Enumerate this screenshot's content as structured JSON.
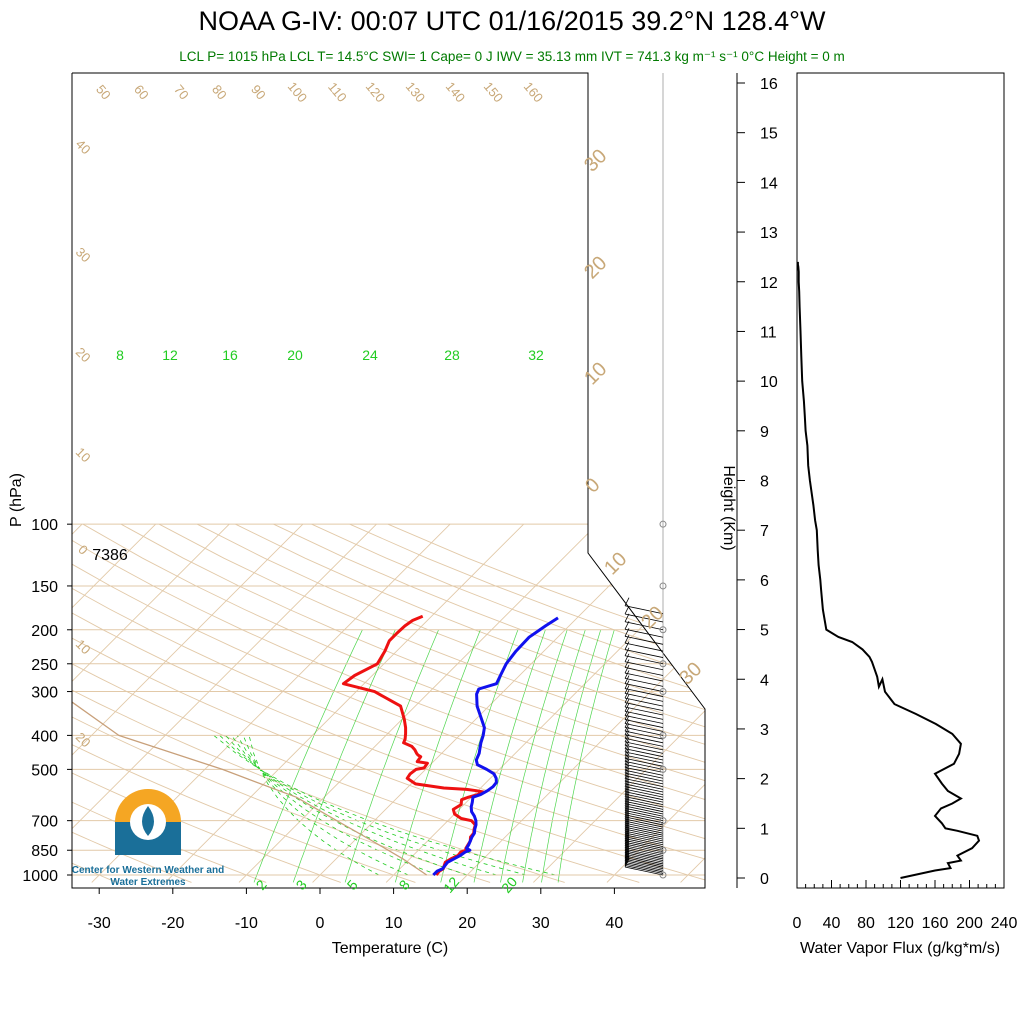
{
  "title": "NOAA G-IV: 00:07 UTC 01/16/2015  39.2°N 128.4°W",
  "subtitle": "LCL P= 1015 hPa  LCL T= 14.5°C  SWI= 1  Cape= 0 J  IWV = 35.13 mm  IVT = 741.3 kg m⁻¹ s⁻¹  0°C Height = 0 m",
  "logo": {
    "name": "cw3e-logo-icon",
    "text": "Center for Western Weather and Water Extremes"
  },
  "chart_data": [
    {
      "type": "line",
      "subtype": "skew-T log-P sounding",
      "xlabel": "Temperature (C)",
      "ylabel": "P (hPa)",
      "xlim": [
        -33,
        41
      ],
      "ylim": [
        1050,
        100
      ],
      "y_scale": "log",
      "x_ticks": [
        "-30",
        "-20",
        "-10",
        "0",
        "10",
        "20",
        "30",
        "40"
      ],
      "y_ticks": [
        "100",
        "150",
        "200",
        "250",
        "300",
        "400",
        "500",
        "700",
        "850",
        "1000"
      ],
      "annotation_height": "7386",
      "mixing_ratio_labels": [
        "8",
        "12",
        "16",
        "20",
        "24",
        "28",
        "32"
      ],
      "lower_mixing_labels": [
        "2",
        "3",
        "5",
        "8",
        "12",
        "20"
      ],
      "isotherm_labels": [
        "30",
        "20",
        "10",
        "0",
        "10",
        "20",
        "30"
      ],
      "adiabat_labels": [
        "50",
        "60",
        "70",
        "80",
        "90",
        "100",
        "110",
        "120",
        "130",
        "140",
        "150",
        "160"
      ],
      "left_labels": [
        "40",
        "30",
        "20",
        "10",
        "0",
        "10",
        "20"
      ],
      "colors": {
        "temperature": "#ee1111",
        "dewpoint": "#1111ee",
        "parcel": "#c8a07a",
        "grid": "#e2c9a8",
        "mixing": "#22cc22"
      },
      "series": [
        {
          "role": "temperature",
          "x": [
            15.8,
            15.7,
            15.9,
            15.6,
            15.3,
            15.6,
            16.1,
            16.0,
            16.5,
            16.2,
            16.0,
            15.8,
            15.3,
            15.2,
            14.7,
            14.3,
            13.2,
            11.5,
            10.0,
            9.2,
            9.6,
            9.0,
            9.6,
            10.5,
            10.9,
            9.8,
            8.3,
            5.0,
            0.6,
            -1.3,
            -1.5,
            -1.3,
            -0.4,
            -0.6,
            -2.2,
            -2.4,
            -3.0,
            -3.4,
            -4.1,
            -5.0,
            -6.6,
            -6.9,
            -7.6,
            -8.4,
            -9.7,
            -12.0,
            -17.5,
            -22.8,
            -22.4,
            -20.9,
            -21.6,
            -22.4,
            -22.4,
            -22.3,
            -22.0,
            -21.2
          ],
          "y": [
            1000,
            975,
            960,
            940,
            920,
            900,
            880,
            860,
            850,
            840,
            820,
            800,
            780,
            760,
            740,
            720,
            700,
            690,
            670,
            650,
            630,
            610,
            600,
            590,
            580,
            575,
            570,
            565,
            550,
            530,
            515,
            500,
            495,
            480,
            475,
            460,
            455,
            450,
            440,
            430,
            420,
            410,
            395,
            380,
            360,
            330,
            300,
            285,
            270,
            250,
            230,
            215,
            205,
            195,
            188,
            183
          ]
        },
        {
          "role": "dewpoint",
          "x": [
            15.4,
            15.4,
            15.8,
            15.7,
            15.6,
            16.0,
            16.4,
            16.6,
            17.0,
            16.3,
            16.1,
            15.8,
            15.5,
            15.3,
            14.8,
            14.4,
            13.8,
            13.0,
            12.0,
            11.3,
            10.8,
            10.2,
            10.9,
            11.3,
            11.5,
            11.4,
            10.8,
            9.9,
            8.3,
            6.4,
            5.6,
            5.1,
            4.7,
            3.9,
            3.2,
            2.3,
            0.8,
            -1.6,
            -3.3,
            -3.7,
            -2.0,
            -2.6,
            -3.4,
            -3.8,
            -3.9,
            -3.2,
            -2.6
          ],
          "y": [
            1000,
            975,
            960,
            940,
            920,
            900,
            880,
            860,
            850,
            840,
            820,
            800,
            780,
            760,
            740,
            720,
            700,
            680,
            660,
            640,
            620,
            600,
            590,
            575,
            560,
            545,
            530,
            515,
            500,
            485,
            470,
            450,
            440,
            420,
            400,
            380,
            360,
            330,
            305,
            295,
            285,
            270,
            250,
            230,
            210,
            195,
            185
          ]
        },
        {
          "role": "parcel",
          "x": [
            14.5,
            9.1,
            2.5,
            -5.1,
            -13.8,
            -27.6,
            -46.3,
            -60.6,
            -73.9,
            -91.6
          ],
          "y": [
            1000,
            900,
            800,
            700,
            600,
            500,
            400,
            300,
            250,
            200
          ]
        }
      ]
    },
    {
      "type": "line",
      "xlabel": "Water Vapor Flux (g/kg*m/s)",
      "ylabel": "Height (Km)",
      "xlim": [
        0,
        240
      ],
      "ylim": [
        -0.3,
        16.5
      ],
      "x_ticks": [
        "0",
        "40",
        "80",
        "120",
        "160",
        "200",
        "240"
      ],
      "y_ticks": [
        "0",
        "1",
        "2",
        "3",
        "4",
        "5",
        "6",
        "7",
        "8",
        "9",
        "10",
        "11",
        "12",
        "13",
        "14",
        "15",
        "16"
      ],
      "series": [
        {
          "role": "flux",
          "x": [
            120,
            160,
            178,
            175,
            190,
            186,
            203,
            211,
            209,
            186,
            172,
            168,
            160,
            167,
            180,
            190,
            175,
            168,
            160,
            182,
            188,
            190,
            180,
            161,
            138,
            113,
            102,
            99,
            95,
            93,
            90,
            87,
            84,
            76,
            64,
            48,
            34,
            30,
            28,
            27,
            25,
            24,
            23,
            21,
            19,
            15,
            13,
            12,
            10,
            9,
            8,
            6,
            5,
            4,
            3,
            2.5,
            2,
            2,
            1.5,
            1,
            1
          ],
          "y": [
            0,
            0.15,
            0.2,
            0.3,
            0.35,
            0.45,
            0.6,
            0.75,
            0.85,
            0.95,
            1.0,
            1.1,
            1.25,
            1.4,
            1.5,
            1.6,
            1.75,
            1.9,
            2.1,
            2.3,
            2.5,
            2.7,
            2.9,
            3.1,
            3.3,
            3.5,
            3.75,
            4.0,
            3.85,
            4.05,
            4.2,
            4.35,
            4.45,
            4.6,
            4.75,
            4.85,
            5.0,
            5.4,
            5.8,
            6.0,
            6.3,
            6.6,
            7.0,
            7.2,
            7.5,
            8.0,
            8.3,
            8.7,
            9.0,
            9.3,
            9.6,
            10.0,
            10.5,
            11.0,
            11.5,
            11.8,
            12.0,
            12.2,
            12.3,
            12.35,
            12.4
          ]
        }
      ]
    }
  ]
}
